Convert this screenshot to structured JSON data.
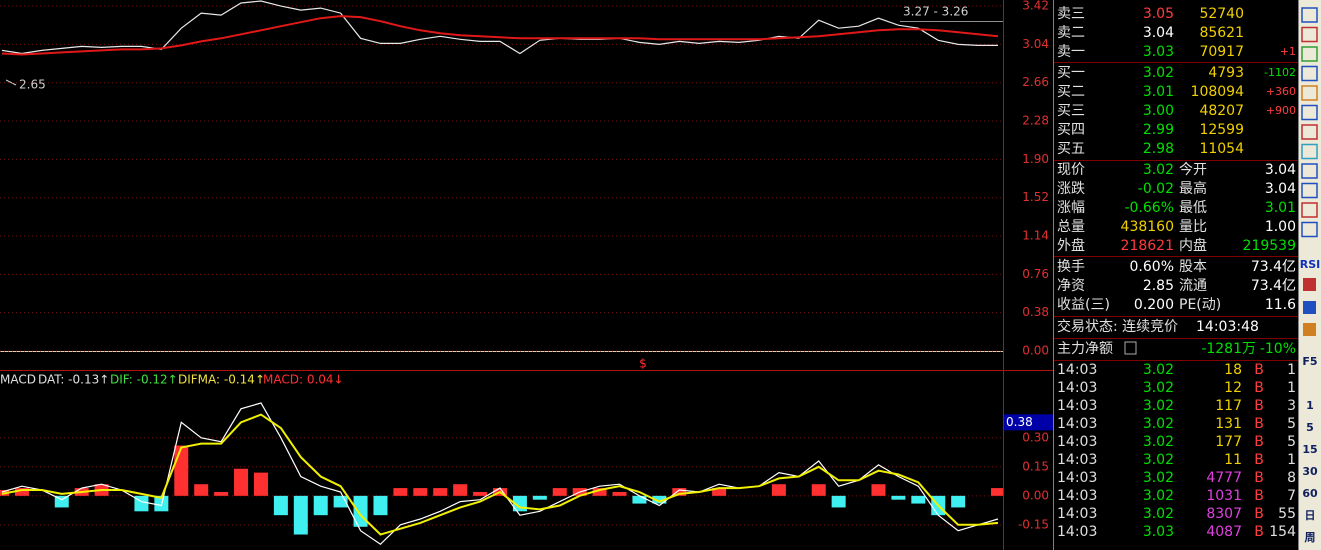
{
  "chart_data": [
    {
      "type": "line",
      "ylim": [
        0,
        3.48
      ],
      "yticks": [
        {
          "value": 0,
          "label": "0.00"
        },
        0.38,
        0.76,
        1.14,
        1.52,
        {
          "value": 1.9,
          "label": "1.90"
        },
        2.28,
        2.66,
        3.04,
        3.42
      ],
      "grid": true,
      "series": [
        {
          "color": "#e8e8e8",
          "values": [
            2.98,
            2.95,
            2.98,
            3.0,
            3.02,
            3.01,
            3.02,
            3.02,
            2.99,
            3.2,
            3.35,
            3.33,
            3.45,
            3.47,
            3.42,
            3.38,
            3.4,
            3.35,
            3.1,
            3.05,
            3.05,
            3.09,
            3.12,
            3.09,
            3.07,
            3.07,
            2.95,
            3.08,
            3.1,
            3.09,
            3.09,
            3.1,
            3.06,
            3.04,
            3.07,
            3.05,
            3.07,
            3.06,
            3.08,
            3.12,
            3.1,
            3.28,
            3.2,
            3.22,
            3.3,
            3.23,
            3.2,
            3.08,
            3.04,
            3.03,
            3.03
          ]
        },
        {
          "color": "#e01818",
          "values": [
            2.95,
            2.94,
            2.95,
            2.96,
            2.97,
            2.98,
            2.99,
            2.99,
            3.0,
            3.03,
            3.07,
            3.1,
            3.14,
            3.18,
            3.22,
            3.26,
            3.3,
            3.32,
            3.31,
            3.27,
            3.22,
            3.18,
            3.15,
            3.13,
            3.12,
            3.11,
            3.1,
            3.1,
            3.1,
            3.1,
            3.1,
            3.1,
            3.1,
            3.09,
            3.09,
            3.09,
            3.09,
            3.09,
            3.09,
            3.1,
            3.11,
            3.12,
            3.14,
            3.16,
            3.18,
            3.19,
            3.19,
            3.18,
            3.16,
            3.14,
            3.12
          ]
        }
      ],
      "annotations": [
        "3.27 - 3.26",
        "2.65",
        "$"
      ]
    },
    {
      "type": "macd",
      "title": "MACD",
      "legend": [
        {
          "label": "DAT: -0.13↑",
          "color": "#e0e0e0"
        },
        {
          "label": "DIF: -0.12↑",
          "color": "#40e040"
        },
        {
          "label": "DIFMA: -0.14↑",
          "color": "#f0e040"
        },
        {
          "label": "MACD: 0.04↓",
          "color": "#ff3030"
        }
      ],
      "ylim": [
        -0.28,
        0.64
      ],
      "yticks": [
        -0.15,
        {
          "value": 0,
          "label": "0.00"
        },
        0.15,
        {
          "value": 0.3,
          "label": "0.30"
        }
      ],
      "grid": true,
      "highlight": 0.38,
      "series": [
        {
          "color": "#ffffff",
          "values": [
            0.02,
            0.05,
            0.03,
            -0.02,
            0.04,
            0.06,
            0.03,
            -0.03,
            -0.05,
            0.38,
            0.3,
            0.28,
            0.45,
            0.48,
            0.3,
            0.1,
            0.05,
            0.02,
            -0.18,
            -0.25,
            -0.15,
            -0.12,
            -0.08,
            -0.03,
            -0.02,
            0.04,
            -0.1,
            -0.08,
            -0.03,
            0.02,
            0.05,
            0.06,
            0.0,
            -0.05,
            0.03,
            0.02,
            0.06,
            0.04,
            0.05,
            0.12,
            0.1,
            0.18,
            0.05,
            0.08,
            0.16,
            0.1,
            0.05,
            -0.1,
            -0.18,
            -0.15,
            -0.12
          ]
        },
        {
          "color": "#f0f000",
          "values": [
            0.01,
            0.03,
            0.03,
            0.01,
            0.02,
            0.03,
            0.03,
            0.01,
            -0.01,
            0.25,
            0.27,
            0.27,
            0.38,
            0.42,
            0.35,
            0.2,
            0.1,
            0.05,
            -0.1,
            -0.2,
            -0.17,
            -0.14,
            -0.1,
            -0.06,
            -0.03,
            0.02,
            -0.06,
            -0.07,
            -0.05,
            0.0,
            0.03,
            0.05,
            0.02,
            -0.03,
            0.01,
            0.02,
            0.04,
            0.04,
            0.05,
            0.09,
            0.1,
            0.15,
            0.08,
            0.08,
            0.13,
            0.11,
            0.07,
            -0.05,
            -0.15,
            -0.15,
            -0.14
          ]
        }
      ],
      "histogram": {
        "positive_color": "#ff3030",
        "negative_color": "#40f0f0",
        "values": [
          0.03,
          0.04,
          0,
          -0.06,
          0.04,
          0.06,
          0,
          -0.08,
          -0.08,
          0.26,
          0.06,
          0.02,
          0.14,
          0.12,
          -0.1,
          -0.2,
          -0.1,
          -0.06,
          -0.16,
          -0.1,
          0.04,
          0.04,
          0.04,
          0.06,
          0.02,
          0.04,
          -0.08,
          -0.02,
          0.04,
          0.04,
          0.04,
          0.02,
          -0.04,
          -0.04,
          0.04,
          0,
          0.04,
          0,
          0,
          0.06,
          0,
          0.06,
          -0.06,
          0,
          0.06,
          -0.02,
          -0.04,
          -0.1,
          -0.06,
          0,
          0.04
        ]
      }
    }
  ],
  "quote": {
    "asks": [
      {
        "label": "卖三",
        "price": "3.05",
        "volume": "52740",
        "color": "#ff3c3c"
      },
      {
        "label": "卖二",
        "price": "3.04",
        "volume": "85621",
        "color": "#ffffff"
      },
      {
        "label": "卖一",
        "price": "3.03",
        "volume": "70917",
        "change": "+1",
        "color": "#00e000"
      }
    ],
    "bids": [
      {
        "label": "买一",
        "price": "3.02",
        "volume": "4793",
        "change": "-1102",
        "color": "#00e000"
      },
      {
        "label": "买二",
        "price": "3.01",
        "volume": "108094",
        "change": "+360",
        "color": "#00e000"
      },
      {
        "label": "买三",
        "price": "3.00",
        "volume": "48207",
        "change": "+900",
        "color": "#00e000"
      },
      {
        "label": "买四",
        "price": "2.99",
        "volume": "12599",
        "color": "#00e000"
      },
      {
        "label": "买五",
        "price": "2.98",
        "volume": "11054",
        "color": "#00e000"
      }
    ],
    "volume_color": "#f0d000"
  },
  "stats": [
    [
      "现价",
      "3.02",
      "今开",
      "3.04"
    ],
    [
      "涨跌",
      "-0.02",
      "最高",
      "3.04"
    ],
    [
      "涨幅",
      "-0.66%",
      "最低",
      "3.01"
    ],
    [
      "总量",
      "438160",
      "量比",
      "1.00"
    ],
    [
      "外盘",
      "218621",
      "内盘",
      "219539"
    ],
    [
      "换手",
      "0.60%",
      "股本",
      "73.4亿"
    ],
    [
      "净资",
      "2.85",
      "流通",
      "73.4亿"
    ],
    [
      "收益(三)",
      "0.200",
      "PE(动)",
      "11.6"
    ]
  ],
  "stats_colors": [
    [
      "#00e000",
      "#ffffff"
    ],
    [
      "#00e000",
      "#ffffff"
    ],
    [
      "#00e000",
      "#00e000"
    ],
    [
      "#f0d000",
      "#ffffff"
    ],
    [
      "#ff3c3c",
      "#00e000"
    ],
    [
      "#ffffff",
      "#ffffff"
    ],
    [
      "#ffffff",
      "#ffffff"
    ],
    [
      "#ffffff",
      "#ffffff"
    ]
  ],
  "status": {
    "label": "交易状态: 连续竞价",
    "time": "14:03:48"
  },
  "main_force": {
    "label": "主力净额",
    "value": "-1281万",
    "percent": "-10%"
  },
  "ticks": [
    [
      "14:03",
      "3.02",
      "18",
      "B",
      "1"
    ],
    [
      "14:03",
      "3.02",
      "12",
      "B",
      "1"
    ],
    [
      "14:03",
      "3.02",
      "117",
      "B",
      "3"
    ],
    [
      "14:03",
      "3.02",
      "131",
      "B",
      "5"
    ],
    [
      "14:03",
      "3.02",
      "177",
      "B",
      "5"
    ],
    [
      "14:03",
      "3.02",
      "11",
      "B",
      "1"
    ],
    [
      "14:03",
      "3.02",
      "4777",
      "B",
      "8"
    ],
    [
      "14:03",
      "3.02",
      "1031",
      "B",
      "7"
    ],
    [
      "14:03",
      "3.02",
      "8307",
      "B",
      "55"
    ],
    [
      "14:03",
      "3.03",
      "4087",
      "B",
      "154"
    ]
  ],
  "tick_volume_colors": [
    "#f0d000",
    "#f0d000",
    "#f0d000",
    "#f0d000",
    "#f0d000",
    "#f0d000",
    "#e040e0",
    "#e040e0",
    "#e040e0",
    "#e040e0"
  ],
  "toolbar": [
    "RSI",
    "F5",
    "1",
    "5",
    "15",
    "30",
    "60",
    "日",
    "周"
  ]
}
